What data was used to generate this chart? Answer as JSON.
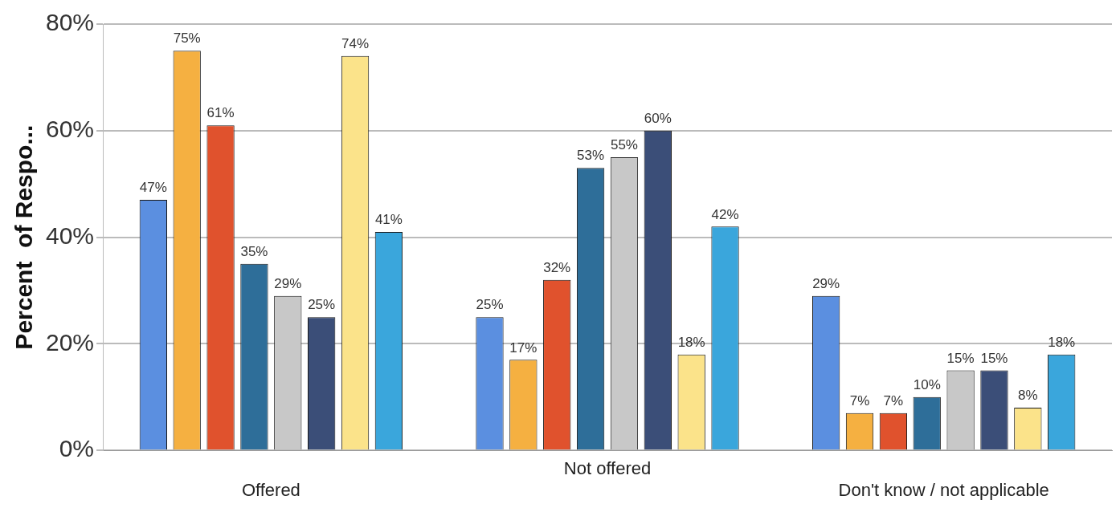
{
  "chart_data": {
    "type": "bar",
    "ylabel": "Percent  of Respo...",
    "categories": [
      "Offered",
      "Not offered",
      "Don't know / not applicable"
    ],
    "series": [
      {
        "color": "#5b8fe0",
        "values": [
          47,
          25,
          29
        ],
        "value_labels": [
          "47%",
          "25%",
          "29%"
        ]
      },
      {
        "color": "#f5b041",
        "values": [
          75,
          17,
          7
        ],
        "value_labels": [
          "75%",
          "17%",
          "7%"
        ]
      },
      {
        "color": "#e0522d",
        "values": [
          61,
          32,
          7
        ],
        "value_labels": [
          "61%",
          "32%",
          "7%"
        ]
      },
      {
        "color": "#2e6e99",
        "values": [
          35,
          53,
          10
        ],
        "value_labels": [
          "35%",
          "53%",
          "10%"
        ]
      },
      {
        "color": "#c8c8c8",
        "values": [
          29,
          55,
          15
        ],
        "value_labels": [
          "29%",
          "55%",
          "15%"
        ]
      },
      {
        "color": "#3b4e78",
        "values": [
          25,
          60,
          15
        ],
        "value_labels": [
          "25%",
          "60%",
          "15%"
        ]
      },
      {
        "color": "#fbe38a",
        "values": [
          74,
          18,
          8
        ],
        "value_labels": [
          "74%",
          "18%",
          "8%"
        ]
      },
      {
        "color": "#3aa6dc",
        "values": [
          41,
          42,
          18
        ],
        "value_labels": [
          "41%",
          "42%",
          "18%"
        ]
      }
    ],
    "ylim": [
      0,
      80
    ],
    "yticks": [
      {
        "value": 0,
        "label": "0%"
      },
      {
        "value": 20,
        "label": "20%"
      },
      {
        "value": 40,
        "label": "40%"
      },
      {
        "value": 60,
        "label": "60%"
      },
      {
        "value": 80,
        "label": "80%"
      }
    ],
    "grid": "y",
    "legend": false
  }
}
